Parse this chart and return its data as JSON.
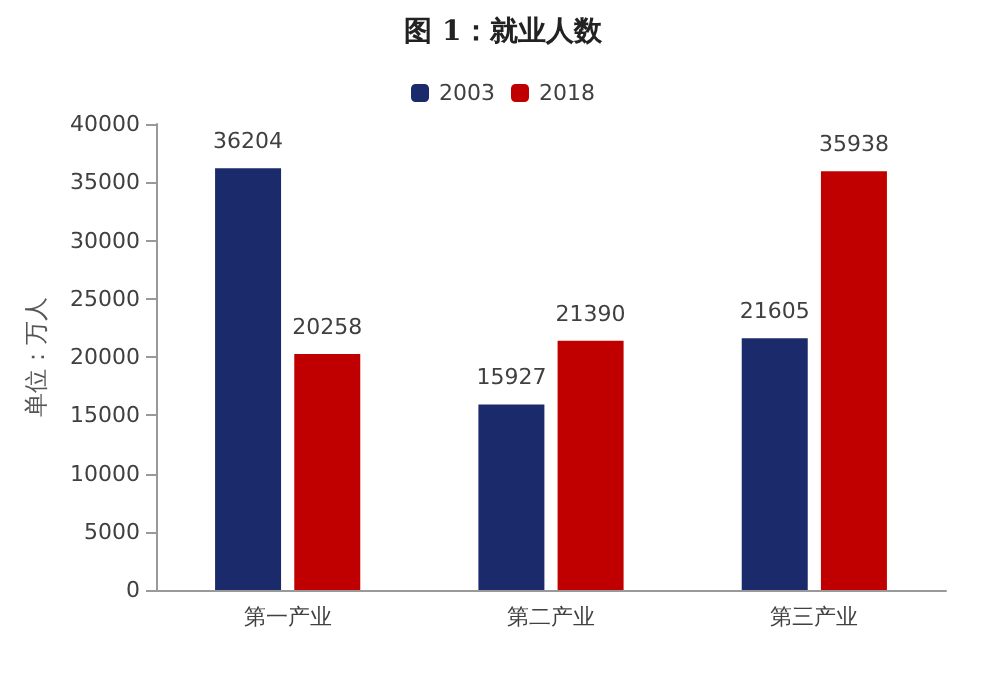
{
  "chart_data": {
    "type": "bar",
    "title": "图 1：就业人数",
    "ylabel": "单位：万人",
    "categories": [
      "第一产业",
      "第二产业",
      "第三产业"
    ],
    "series": [
      {
        "name": "2003",
        "color": "#1b2a6b",
        "values": [
          36204,
          15927,
          21605
        ]
      },
      {
        "name": "2018",
        "color": "#c00000",
        "values": [
          20258,
          21390,
          35938
        ]
      }
    ],
    "ylim": [
      0,
      40000
    ],
    "yticks": [
      0,
      5000,
      10000,
      15000,
      20000,
      25000,
      30000,
      35000,
      40000
    ],
    "grid": false,
    "legend": "top",
    "data_labels": true
  }
}
